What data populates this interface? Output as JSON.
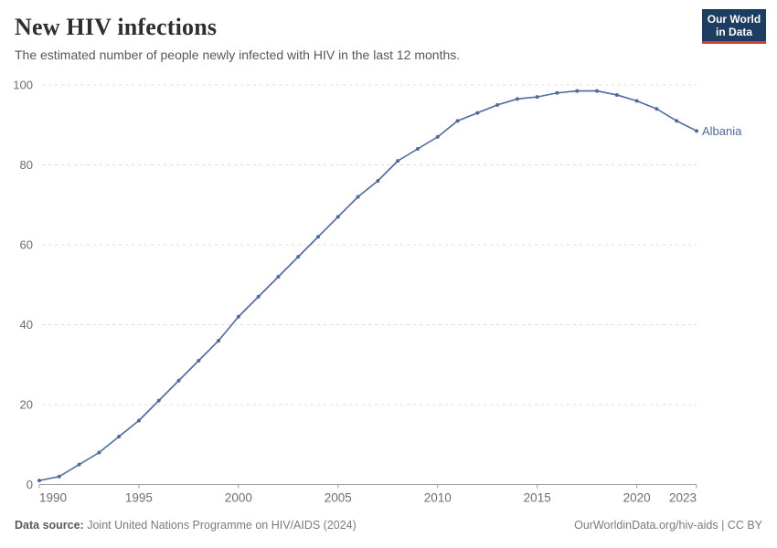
{
  "header": {
    "title": "New HIV infections",
    "subtitle": "The estimated number of people newly infected with HIV in the last 12 months.",
    "logo": {
      "line1": "Our World",
      "line2": "in Data"
    }
  },
  "chart_data": {
    "type": "line",
    "title": "New HIV infections",
    "entity_label": "Albania",
    "x": [
      1990,
      1991,
      1992,
      1993,
      1994,
      1995,
      1996,
      1997,
      1998,
      1999,
      2000,
      2001,
      2002,
      2003,
      2004,
      2005,
      2006,
      2007,
      2008,
      2009,
      2010,
      2011,
      2012,
      2013,
      2014,
      2015,
      2016,
      2017,
      2018,
      2019,
      2020,
      2021,
      2022,
      2023
    ],
    "series": [
      {
        "name": "Albania",
        "values": [
          1,
          2,
          5,
          8,
          12,
          16,
          21,
          26,
          31,
          36,
          42,
          47,
          52,
          57,
          62,
          67,
          72,
          76,
          81,
          84,
          87,
          91,
          93,
          95,
          96.5,
          97,
          98,
          98.5,
          98.5,
          97.5,
          96,
          94,
          91,
          88.5
        ],
        "color": "#4C6A9C"
      }
    ],
    "xlabel": "",
    "ylabel": "",
    "xlim": [
      1990,
      2023
    ],
    "ylim": [
      0,
      100
    ],
    "yticks": [
      0,
      20,
      40,
      60,
      80,
      100
    ],
    "xticks": [
      1990,
      1995,
      2000,
      2005,
      2010,
      2015,
      2020,
      2023
    ],
    "grid": "horizontal-dashed",
    "legend_position": "end-of-line"
  },
  "footer": {
    "datasource_label": "Data source:",
    "datasource_value": "Joint United Nations Programme on HIV/AIDS (2024)",
    "link": "OurWorldinData.org/hiv-aids | CC BY"
  },
  "colors": {
    "line": "#4C6A9C",
    "logo_background": "#1d3d63",
    "logo_accent": "#d93b35",
    "gridline": "#dcdcdc",
    "axis": "#9e9e9e"
  }
}
